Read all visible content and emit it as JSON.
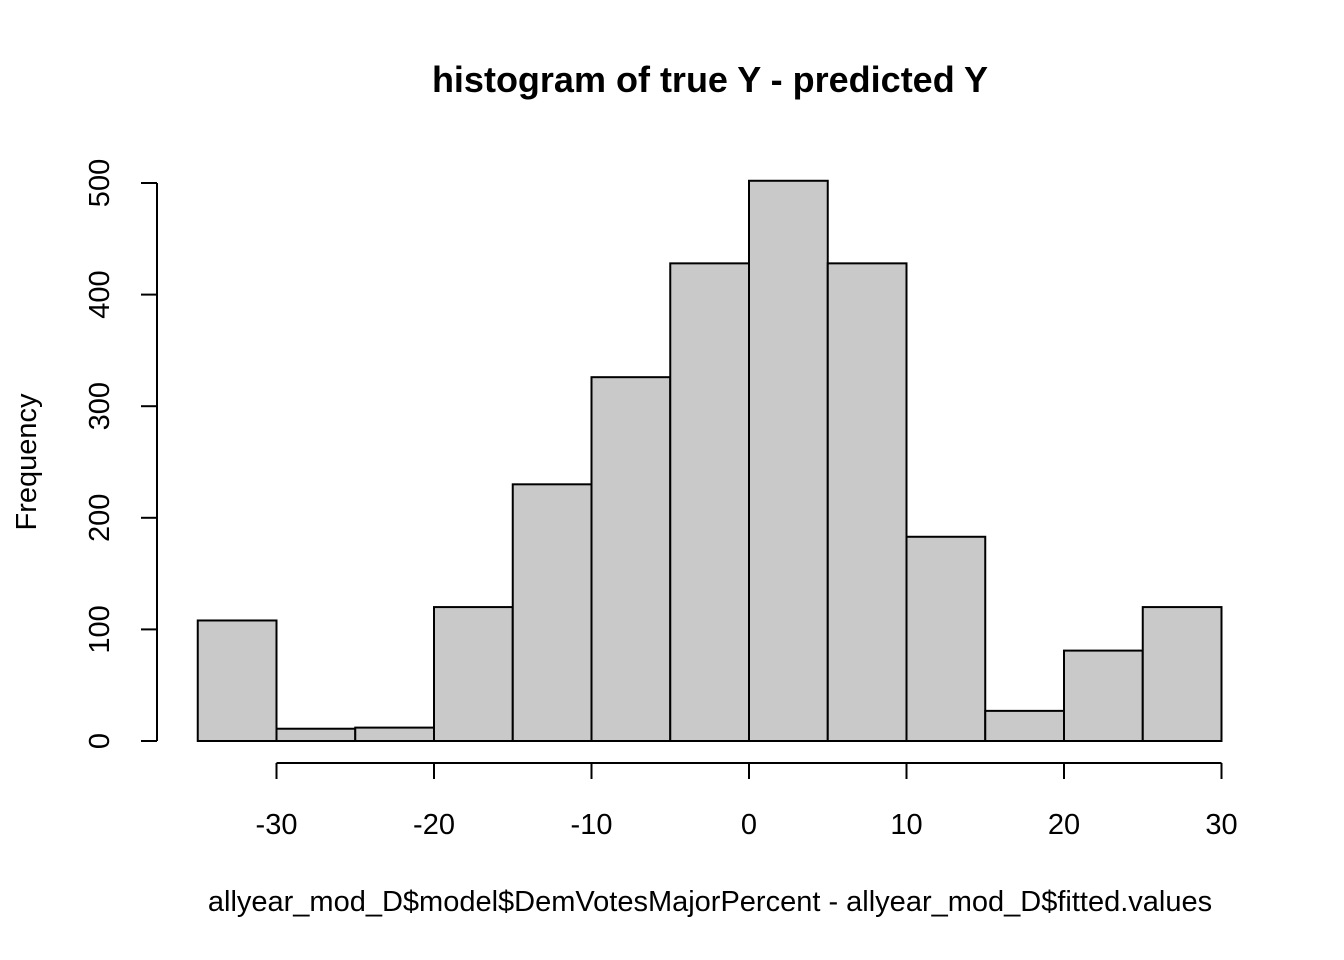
{
  "chart_data": {
    "type": "bar",
    "title": "histogram of true Y - predicted Y",
    "xlabel": "allyear_mod_D$model$DemVotesMajorPercent - allyear_mod_D$fitted.values",
    "ylabel": "Frequency",
    "bins": [
      {
        "start": -35,
        "end": -30,
        "count": 108
      },
      {
        "start": -30,
        "end": -25,
        "count": 11
      },
      {
        "start": -25,
        "end": -20,
        "count": 12
      },
      {
        "start": -20,
        "end": -15,
        "count": 120
      },
      {
        "start": -15,
        "end": -10,
        "count": 230
      },
      {
        "start": -10,
        "end": -5,
        "count": 326
      },
      {
        "start": -5,
        "end": 0,
        "count": 428
      },
      {
        "start": 0,
        "end": 5,
        "count": 502
      },
      {
        "start": 5,
        "end": 10,
        "count": 428
      },
      {
        "start": 10,
        "end": 15,
        "count": 183
      },
      {
        "start": 15,
        "end": 20,
        "count": 27
      },
      {
        "start": 20,
        "end": 25,
        "count": 81
      },
      {
        "start": 25,
        "end": 30,
        "count": 120
      }
    ],
    "xlim": [
      -35,
      30
    ],
    "ylim": [
      0,
      500
    ],
    "x_ticks": [
      -30,
      -20,
      -10,
      0,
      10,
      20,
      30
    ],
    "y_ticks": [
      0,
      100,
      200,
      300,
      400,
      500
    ],
    "grid": false,
    "bar_color": "#c9c9c9",
    "border_color": "#000000"
  }
}
